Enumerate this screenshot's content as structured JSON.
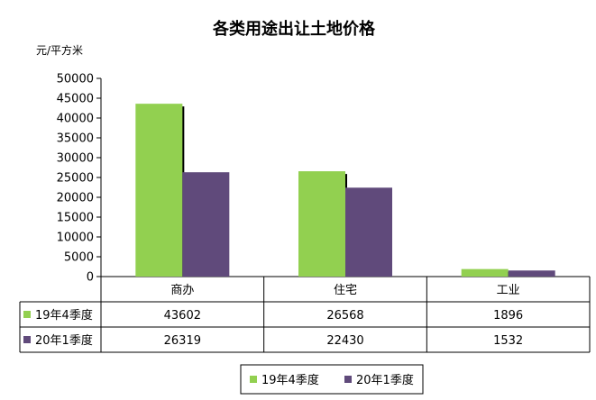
{
  "chart_data": {
    "type": "bar",
    "title": "各类用途出让土地价格",
    "ylabel": "元/平方米",
    "categories": [
      "商办",
      "住宅",
      "工业"
    ],
    "ylim": [
      0,
      50000
    ],
    "yticks": [
      0,
      5000,
      10000,
      15000,
      20000,
      25000,
      30000,
      35000,
      40000,
      45000,
      50000
    ],
    "series": [
      {
        "name": "19年4季度",
        "values": [
          43602,
          26568,
          1896
        ],
        "color": "#92d050"
      },
      {
        "name": "20年1季度",
        "values": [
          26319,
          22430,
          1532
        ],
        "color": "#604a7b"
      }
    ],
    "grid": false,
    "legend_position": "bottom",
    "data_table": true
  }
}
